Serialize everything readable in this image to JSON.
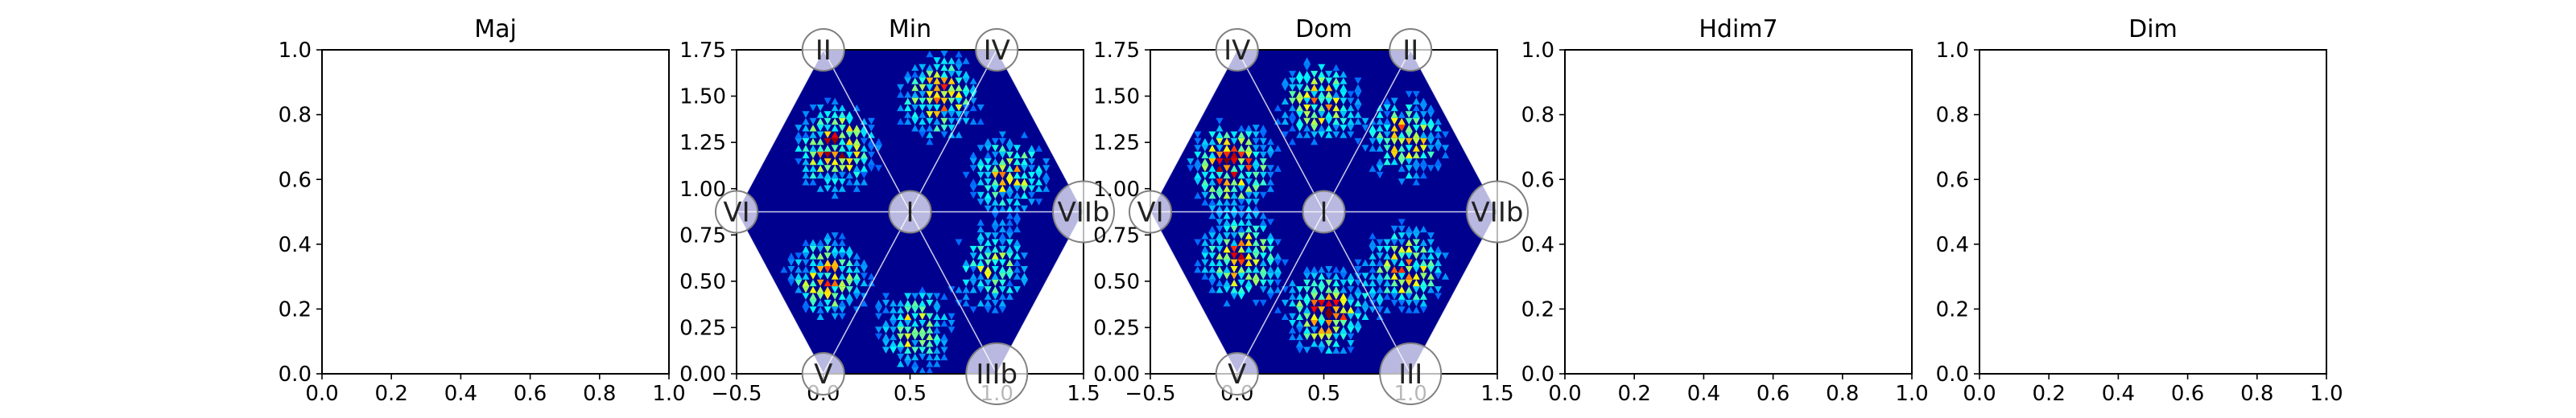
{
  "chart_data": [
    {
      "type": "heatmap",
      "title": "Maj",
      "xlim": [
        0.0,
        1.0
      ],
      "ylim": [
        0.0,
        1.0
      ],
      "xticks": [
        "0.0",
        "0.2",
        "0.4",
        "0.6",
        "0.8",
        "1.0"
      ],
      "yticks": [
        "0.0",
        "0.2",
        "0.4",
        "0.6",
        "0.8",
        "1.0"
      ],
      "grid": false,
      "empty": true
    },
    {
      "type": "heatmap",
      "title": "Min",
      "xlim": [
        -0.5,
        1.5
      ],
      "ylim": [
        0.0,
        1.75
      ],
      "xticks": [
        "−0.5",
        "0.0",
        "0.5",
        "1.0",
        "1.5"
      ],
      "yticks": [
        "0.00",
        "0.25",
        "0.50",
        "0.75",
        "1.00",
        "1.25",
        "1.50",
        "1.75"
      ],
      "grid": false,
      "colormap": "jet",
      "nodes": [
        {
          "label": "II",
          "x": 0.0,
          "y": 1.75
        },
        {
          "label": "IV",
          "x": 1.0,
          "y": 1.75
        },
        {
          "label": "VI",
          "x": -0.5,
          "y": 0.875
        },
        {
          "label": "I",
          "x": 0.5,
          "y": 0.875
        },
        {
          "label": "VIIb",
          "x": 1.5,
          "y": 0.875
        },
        {
          "label": "V",
          "x": 0.0,
          "y": 0.0
        },
        {
          "label": "IIIb",
          "x": 1.0,
          "y": 0.0
        }
      ],
      "hotspots": [
        {
          "x": 0.05,
          "y": 1.2,
          "intensity": 0.9
        },
        {
          "x": 0.65,
          "y": 1.48,
          "intensity": 0.75
        },
        {
          "x": 1.05,
          "y": 1.05,
          "intensity": 0.65
        },
        {
          "x": 0.0,
          "y": 0.5,
          "intensity": 0.7
        },
        {
          "x": 0.5,
          "y": 0.22,
          "intensity": 0.6
        },
        {
          "x": 0.95,
          "y": 0.55,
          "intensity": 0.55
        }
      ]
    },
    {
      "type": "heatmap",
      "title": "Dom",
      "xlim": [
        -0.5,
        1.5
      ],
      "ylim": [
        0.0,
        1.75
      ],
      "xticks": [
        "−0.5",
        "0.0",
        "0.5",
        "1.0",
        "1.5"
      ],
      "yticks": [
        "0.00",
        "0.25",
        "0.50",
        "0.75",
        "1.00",
        "1.25",
        "1.50",
        "1.75"
      ],
      "grid": false,
      "colormap": "jet",
      "nodes": [
        {
          "label": "IV",
          "x": 0.0,
          "y": 1.75
        },
        {
          "label": "II",
          "x": 1.0,
          "y": 1.75
        },
        {
          "label": "VI",
          "x": -0.5,
          "y": 0.875
        },
        {
          "label": "I",
          "x": 0.5,
          "y": 0.875
        },
        {
          "label": "VIIb",
          "x": 1.5,
          "y": 0.875
        },
        {
          "label": "V",
          "x": 0.0,
          "y": 0.0
        },
        {
          "label": "III",
          "x": 1.0,
          "y": 0.0
        }
      ],
      "hotspots": [
        {
          "x": -0.05,
          "y": 1.1,
          "intensity": 0.95
        },
        {
          "x": 0.45,
          "y": 1.45,
          "intensity": 0.7
        },
        {
          "x": 0.95,
          "y": 1.25,
          "intensity": 0.75
        },
        {
          "x": 0.0,
          "y": 0.6,
          "intensity": 0.8
        },
        {
          "x": 0.5,
          "y": 0.32,
          "intensity": 0.9
        },
        {
          "x": 0.95,
          "y": 0.55,
          "intensity": 0.75
        }
      ]
    },
    {
      "type": "heatmap",
      "title": "Hdim7",
      "xlim": [
        0.0,
        1.0
      ],
      "ylim": [
        0.0,
        1.0
      ],
      "xticks": [
        "0.0",
        "0.2",
        "0.4",
        "0.6",
        "0.8",
        "1.0"
      ],
      "yticks": [
        "0.0",
        "0.2",
        "0.4",
        "0.6",
        "0.8",
        "1.0"
      ],
      "grid": false,
      "empty": true
    },
    {
      "type": "heatmap",
      "title": "Dim",
      "xlim": [
        0.0,
        1.0
      ],
      "ylim": [
        0.0,
        1.0
      ],
      "xticks": [
        "0.0",
        "0.2",
        "0.4",
        "0.6",
        "0.8",
        "1.0"
      ],
      "yticks": [
        "0.0",
        "0.2",
        "0.4",
        "0.6",
        "0.8",
        "1.0"
      ],
      "grid": false,
      "empty": true
    }
  ]
}
